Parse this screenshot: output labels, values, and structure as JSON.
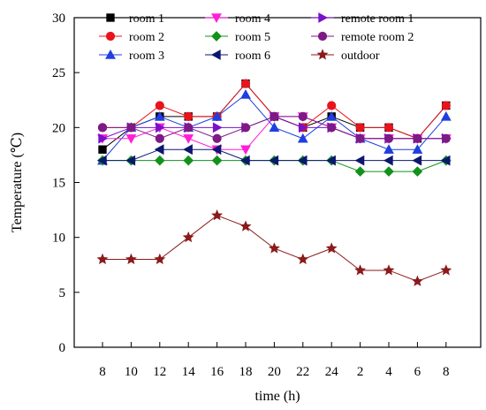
{
  "chart_data": {
    "type": "line",
    "xlabel": "time (h)",
    "ylabel": "Temperature (℃)",
    "categories": [
      "8",
      "10",
      "12",
      "14",
      "16",
      "18",
      "20",
      "22",
      "24",
      "2",
      "4",
      "6",
      "8"
    ],
    "ylim": [
      0,
      30
    ],
    "yticks": [
      "0",
      "5",
      "10",
      "15",
      "20",
      "25",
      "30"
    ],
    "grid": false,
    "legend_position": "top",
    "series": [
      {
        "name": "room 1",
        "color": "#000000",
        "marker": "square",
        "values": [
          18,
          20,
          21,
          21,
          21,
          24,
          21,
          20,
          21,
          20,
          20,
          19,
          22
        ]
      },
      {
        "name": "room 2",
        "color": "#e8141b",
        "marker": "circle",
        "values": [
          20,
          20,
          22,
          21,
          21,
          24,
          21,
          20,
          22,
          20,
          20,
          19,
          22
        ]
      },
      {
        "name": "room 3",
        "color": "#1f3fe0",
        "marker": "triangle-up",
        "values": [
          17,
          20,
          21,
          20,
          21,
          23,
          20,
          19,
          21,
          19,
          18,
          18,
          21
        ]
      },
      {
        "name": "room 4",
        "color": "#ff1fd6",
        "marker": "triangle-down",
        "values": [
          19,
          19,
          20,
          19,
          18,
          18,
          21,
          21,
          20,
          19,
          19,
          19,
          19
        ]
      },
      {
        "name": "room 5",
        "color": "#12921b",
        "marker": "diamond",
        "values": [
          17,
          17,
          17,
          17,
          17,
          17,
          17,
          17,
          17,
          16,
          16,
          16,
          17
        ]
      },
      {
        "name": "room 6",
        "color": "#0b1770",
        "marker": "triangle-left",
        "values": [
          17,
          17,
          18,
          18,
          18,
          17,
          17,
          17,
          17,
          17,
          17,
          17,
          17
        ]
      },
      {
        "name": "remote room 1",
        "color": "#7a10c9",
        "marker": "triangle-right",
        "values": [
          19,
          20,
          20,
          20,
          20,
          20,
          21,
          20,
          20,
          19,
          19,
          19,
          19
        ]
      },
      {
        "name": "remote room 2",
        "color": "#7d1a86",
        "marker": "circle",
        "values": [
          20,
          20,
          19,
          20,
          19,
          20,
          21,
          21,
          20,
          19,
          19,
          19,
          19
        ]
      },
      {
        "name": "outdoor",
        "color": "#8b1a1a",
        "marker": "star",
        "values": [
          8,
          8,
          8,
          10,
          12,
          11,
          9,
          8,
          9,
          7,
          7,
          6,
          7
        ]
      }
    ]
  }
}
